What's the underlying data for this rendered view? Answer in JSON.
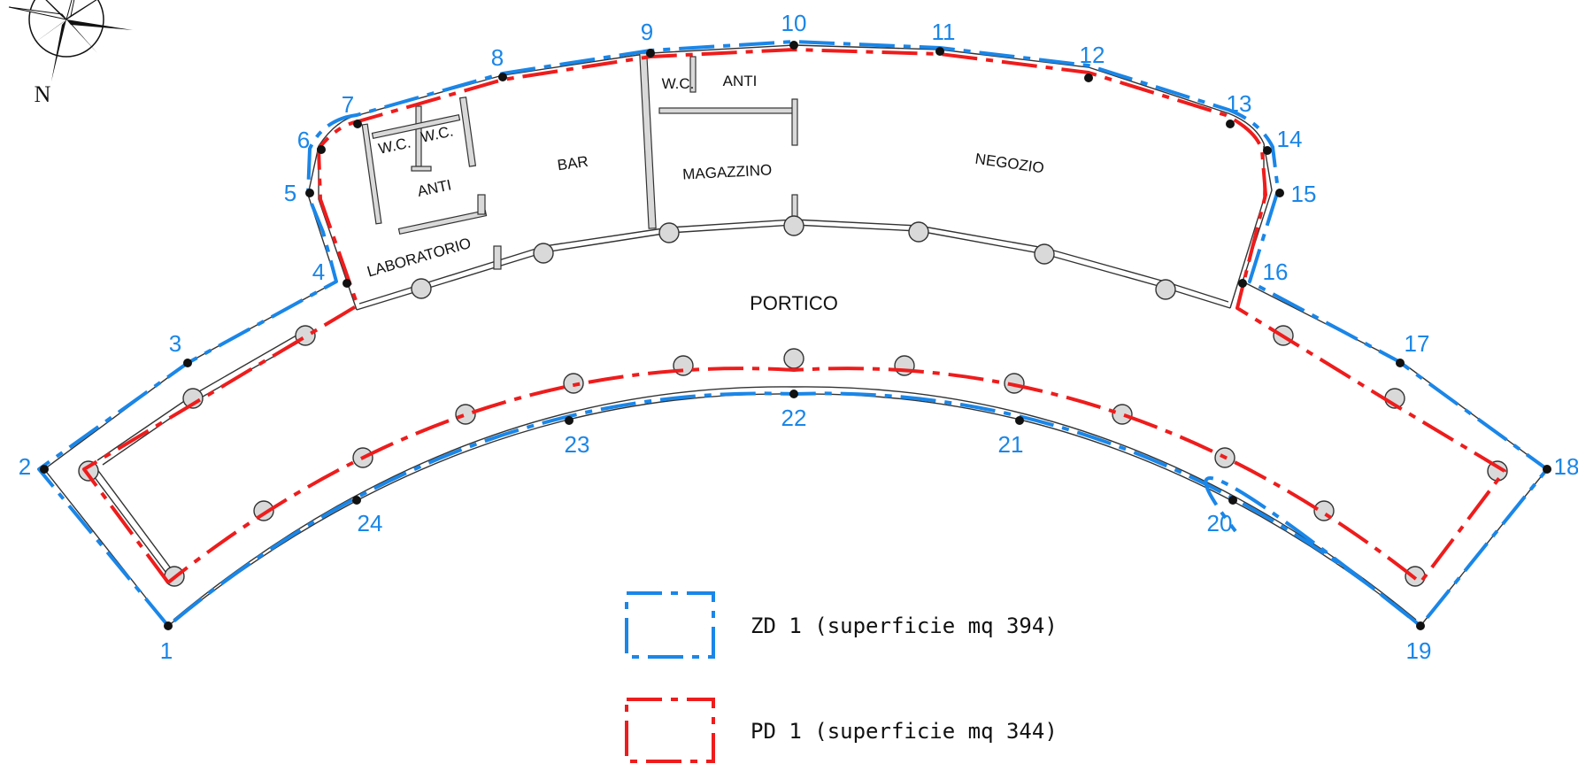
{
  "compass": {
    "north_label": "N"
  },
  "rooms": {
    "bar": "BAR",
    "laboratorio": "LABORATORIO",
    "wc1": "W.C.",
    "wc2": "W.C.",
    "anti1": "ANTI",
    "wc3": "W.C.",
    "anti2": "ANTI",
    "magazzino": "MAGAZZINO",
    "negozio": "NEGOZIO",
    "portico": "PORTICO"
  },
  "point_labels": [
    "1",
    "2",
    "3",
    "4",
    "5",
    "6",
    "7",
    "8",
    "9",
    "10",
    "11",
    "12",
    "13",
    "14",
    "15",
    "16",
    "17",
    "18",
    "19",
    "20",
    "21",
    "22",
    "23",
    "24"
  ],
  "legend": [
    {
      "label": "ZD 1 (superficie mq 394)",
      "color": "#1a86e8"
    },
    {
      "label": "PD 1 (superficie mq 344)",
      "color": "#ee1c1c"
    }
  ]
}
